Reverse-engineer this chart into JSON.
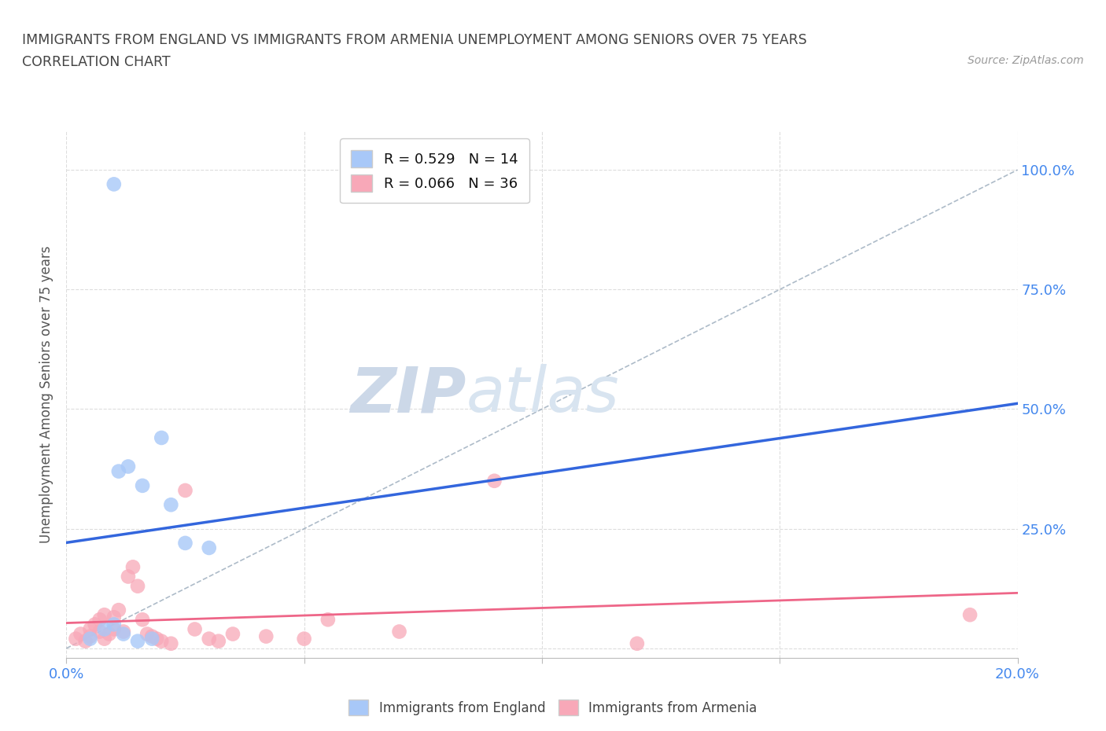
{
  "title_line1": "IMMIGRANTS FROM ENGLAND VS IMMIGRANTS FROM ARMENIA UNEMPLOYMENT AMONG SENIORS OVER 75 YEARS",
  "title_line2": "CORRELATION CHART",
  "source": "Source: ZipAtlas.com",
  "ylabel": "Unemployment Among Seniors over 75 years",
  "xlim": [
    0.0,
    20.0
  ],
  "ylim": [
    -2.0,
    108.0
  ],
  "xticks": [
    0.0,
    5.0,
    10.0,
    15.0,
    20.0
  ],
  "xticklabels": [
    "0.0%",
    "",
    "",
    "",
    "20.0%"
  ],
  "yticks": [
    0.0,
    25.0,
    50.0,
    75.0,
    100.0
  ],
  "yticklabels_right": [
    "",
    "25.0%",
    "50.0%",
    "75.0%",
    "100.0%"
  ],
  "england_color": "#a8c8f8",
  "armenia_color": "#f8a8b8",
  "england_R": 0.529,
  "england_N": 14,
  "armenia_R": 0.066,
  "armenia_N": 36,
  "england_line_color": "#3366dd",
  "armenia_line_color": "#ee6688",
  "diagonal_color": "#99aabb",
  "watermark_zip": "ZIP",
  "watermark_atlas": "atlas",
  "watermark_color": "#ccd8e8",
  "background_color": "#ffffff",
  "grid_color": "#dddddd",
  "grid_style": "--",
  "tick_color": "#4488ee",
  "title_color": "#444444",
  "axis_color": "#bbbbbb",
  "england_x": [
    0.5,
    0.8,
    1.0,
    1.1,
    1.2,
    1.3,
    1.5,
    1.6,
    1.8,
    2.0,
    2.2,
    2.5,
    3.0,
    1.0
  ],
  "england_y": [
    2.0,
    4.0,
    5.0,
    37.0,
    3.0,
    38.0,
    1.5,
    34.0,
    2.0,
    44.0,
    30.0,
    22.0,
    21.0,
    97.0
  ],
  "armenia_x": [
    0.2,
    0.3,
    0.4,
    0.5,
    0.5,
    0.6,
    0.7,
    0.7,
    0.8,
    0.8,
    0.9,
    1.0,
    1.0,
    1.1,
    1.2,
    1.3,
    1.4,
    1.5,
    1.6,
    1.7,
    1.8,
    1.9,
    2.0,
    2.2,
    2.5,
    2.7,
    3.0,
    3.2,
    3.5,
    4.2,
    5.0,
    5.5,
    7.0,
    9.0,
    12.0,
    19.0
  ],
  "armenia_y": [
    2.0,
    3.0,
    1.5,
    4.0,
    2.5,
    5.0,
    6.0,
    3.5,
    7.0,
    2.0,
    3.0,
    4.0,
    6.5,
    8.0,
    3.5,
    15.0,
    17.0,
    13.0,
    6.0,
    3.0,
    2.5,
    2.0,
    1.5,
    1.0,
    33.0,
    4.0,
    2.0,
    1.5,
    3.0,
    2.5,
    2.0,
    6.0,
    3.5,
    35.0,
    1.0,
    7.0
  ]
}
